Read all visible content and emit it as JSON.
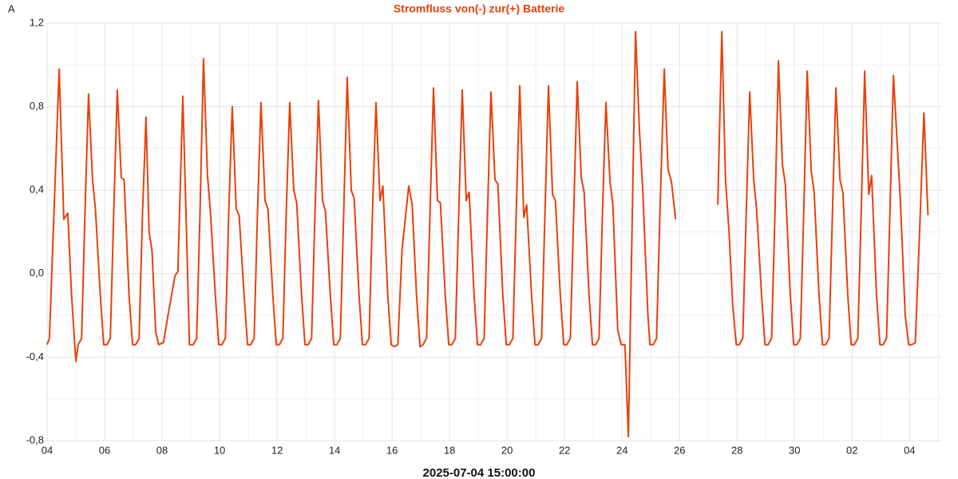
{
  "chart_data": {
    "type": "line",
    "title": "Stromfluss von(-) zur(+) Batterie",
    "y_unit": "A",
    "x_label": "2025-07-04 15:00:00",
    "xlim": [
      4,
      35.13
    ],
    "xticks": [
      {
        "value": 4,
        "label": "04"
      },
      {
        "value": 6,
        "label": "06"
      },
      {
        "value": 8,
        "label": "08"
      },
      10,
      12,
      14,
      16,
      18,
      20,
      22,
      24,
      26,
      28,
      30,
      {
        "value": 32,
        "label": "02"
      },
      {
        "value": 34,
        "label": "04"
      }
    ],
    "minor_xticks": [
      5,
      7,
      9,
      11,
      13,
      15,
      17,
      19,
      21,
      23,
      25,
      27,
      29,
      31,
      33,
      35
    ],
    "ylim": [
      -0.8,
      1.2
    ],
    "yticks": [
      {
        "value": -0.8,
        "label": "-0,8"
      },
      {
        "value": -0.4,
        "label": "-0,4"
      },
      {
        "value": 0,
        "label": "0,0"
      },
      {
        "value": 0.4,
        "label": "0,4"
      },
      {
        "value": 0.8,
        "label": "0,8"
      },
      {
        "value": 1.2,
        "label": "1,2"
      }
    ],
    "minor_yticks": [
      -0.6,
      -0.2,
      0.2,
      0.6,
      1.0
    ],
    "grid": true,
    "series": [
      {
        "name": "Stromfluss",
        "color": "#e8400c",
        "x": [
          4,
          4.08,
          4.28,
          4.42,
          4.58,
          4.72,
          4.85,
          5,
          5.08,
          5.2,
          5.32,
          5.44,
          5.58,
          5.68,
          5.85,
          5.97,
          6.08,
          6.2,
          6.32,
          6.44,
          6.58,
          6.68,
          6.85,
          6.97,
          7.08,
          7.2,
          7.32,
          7.44,
          7.55,
          7.65,
          7.78,
          7.88,
          8.05,
          8.18,
          8.45,
          8.55,
          8.72,
          8.83,
          8.95,
          9.08,
          9.2,
          9.32,
          9.44,
          9.58,
          9.68,
          9.85,
          9.97,
          10.08,
          10.2,
          10.32,
          10.44,
          10.58,
          10.68,
          10.85,
          10.97,
          11.08,
          11.2,
          11.32,
          11.44,
          11.58,
          11.68,
          11.85,
          11.97,
          12.08,
          12.2,
          12.32,
          12.44,
          12.58,
          12.68,
          12.85,
          12.97,
          13.08,
          13.2,
          13.32,
          13.44,
          13.58,
          13.68,
          13.85,
          13.97,
          14.08,
          14.2,
          14.32,
          14.44,
          14.58,
          14.68,
          14.85,
          14.97,
          15.08,
          15.2,
          15.32,
          15.44,
          15.58,
          15.68,
          15.85,
          15.97,
          16.08,
          16.2,
          16.35,
          16.45,
          16.58,
          16.7,
          16.85,
          16.97,
          17.08,
          17.2,
          17.32,
          17.44,
          17.58,
          17.68,
          17.85,
          17.97,
          18.08,
          18.2,
          18.32,
          18.44,
          18.58,
          18.68,
          18.85,
          18.97,
          19.08,
          19.2,
          19.32,
          19.44,
          19.58,
          19.68,
          19.85,
          19.97,
          20.08,
          20.2,
          20.32,
          20.44,
          20.58,
          20.68,
          20.85,
          20.97,
          21.08,
          21.2,
          21.32,
          21.44,
          21.58,
          21.68,
          21.85,
          21.97,
          22.08,
          22.2,
          22.32,
          22.44,
          22.58,
          22.68,
          22.85,
          22.97,
          23.08,
          23.2,
          23.32,
          23.44,
          23.58,
          23.68,
          23.85,
          23.97,
          24.1,
          24.22,
          24.47,
          24.6,
          24.72,
          24.9,
          24.97,
          25.08,
          25.2,
          25.32,
          25.47,
          25.6,
          25.72,
          25.86,
          26.5,
          27.33,
          27.47,
          27.6,
          27.72,
          27.85,
          27.97,
          28.08,
          28.2,
          28.32,
          28.44,
          28.58,
          28.68,
          28.85,
          28.97,
          29.08,
          29.2,
          29.32,
          29.44,
          29.58,
          29.68,
          29.85,
          29.97,
          30.08,
          30.2,
          30.32,
          30.44,
          30.58,
          30.68,
          30.85,
          30.97,
          31.08,
          31.2,
          31.32,
          31.44,
          31.58,
          31.68,
          31.85,
          31.97,
          32.08,
          32.2,
          32.32,
          32.44,
          32.58,
          32.68,
          32.85,
          32.97,
          33.08,
          33.2,
          33.32,
          33.44,
          33.58,
          33.68,
          33.85,
          33.97,
          34.08,
          34.2,
          34.35,
          34.5,
          34.64
        ],
        "values": [
          -0.34,
          -0.31,
          0.45,
          0.98,
          0.26,
          0.29,
          -0.1,
          -0.42,
          -0.34,
          -0.31,
          0.3,
          0.86,
          0.45,
          0.31,
          -0.1,
          -0.34,
          -0.34,
          -0.31,
          0.3,
          0.88,
          0.46,
          0.45,
          -0.1,
          -0.34,
          -0.34,
          -0.31,
          0.3,
          0.75,
          0.2,
          0.11,
          -0.28,
          -0.34,
          -0.33,
          -0.22,
          -0.01,
          0.01,
          0.85,
          0.3,
          -0.34,
          -0.34,
          -0.31,
          0.3,
          1.03,
          0.47,
          0.3,
          -0.1,
          -0.34,
          -0.34,
          -0.31,
          0.3,
          0.8,
          0.31,
          0.28,
          -0.1,
          -0.34,
          -0.34,
          -0.31,
          0.3,
          0.82,
          0.35,
          0.31,
          -0.1,
          -0.34,
          -0.34,
          -0.31,
          0.3,
          0.82,
          0.4,
          0.34,
          -0.1,
          -0.34,
          -0.34,
          -0.31,
          0.3,
          0.83,
          0.35,
          0.3,
          -0.1,
          -0.34,
          -0.34,
          -0.31,
          0.3,
          0.94,
          0.4,
          0.36,
          -0.1,
          -0.34,
          -0.34,
          -0.31,
          0.3,
          0.82,
          0.35,
          0.42,
          -0.1,
          -0.34,
          -0.35,
          -0.34,
          0.12,
          0.25,
          0.42,
          0.33,
          -0.1,
          -0.35,
          -0.34,
          -0.31,
          0.3,
          0.89,
          0.35,
          0.34,
          -0.1,
          -0.34,
          -0.34,
          -0.31,
          0.3,
          0.88,
          0.35,
          0.39,
          -0.1,
          -0.34,
          -0.34,
          -0.31,
          0.3,
          0.87,
          0.45,
          0.43,
          -0.1,
          -0.34,
          -0.34,
          -0.31,
          0.3,
          0.9,
          0.27,
          0.33,
          -0.1,
          -0.34,
          -0.34,
          -0.31,
          0.3,
          0.9,
          0.38,
          0.35,
          -0.1,
          -0.34,
          -0.34,
          -0.31,
          0.3,
          0.92,
          0.46,
          0.39,
          -0.1,
          -0.34,
          -0.34,
          -0.31,
          0.3,
          0.82,
          0.44,
          0.33,
          -0.27,
          -0.34,
          -0.34,
          -0.78,
          1.16,
          0.7,
          0.4,
          -0.2,
          -0.34,
          -0.34,
          -0.31,
          0.3,
          0.98,
          0.5,
          0.44,
          0.26,
          null,
          0.33,
          1.16,
          0.45,
          0.2,
          -0.15,
          -0.34,
          -0.34,
          -0.31,
          0.3,
          0.87,
          0.45,
          0.31,
          -0.1,
          -0.34,
          -0.34,
          -0.31,
          0.3,
          1.02,
          0.52,
          0.43,
          -0.1,
          -0.34,
          -0.34,
          -0.31,
          0.3,
          0.97,
          0.49,
          0.39,
          -0.1,
          -0.34,
          -0.34,
          -0.31,
          0.3,
          0.89,
          0.45,
          0.39,
          -0.1,
          -0.34,
          -0.34,
          -0.31,
          0.3,
          0.97,
          0.38,
          0.47,
          -0.1,
          -0.34,
          -0.34,
          -0.31,
          0.3,
          0.95,
          0.6,
          0.35,
          -0.2,
          -0.34,
          -0.34,
          -0.33,
          0.2,
          0.77,
          0.28
        ]
      }
    ]
  }
}
